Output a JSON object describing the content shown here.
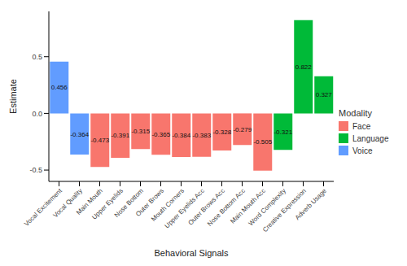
{
  "chart_data": {
    "type": "bar",
    "x_label": "Behavioral Signals",
    "y_label": "Estimate",
    "legend_title": "Modality",
    "legend": "right",
    "stacked": true,
    "data_labels": true,
    "grid": false,
    "categories": [
      "Vocal Excitement",
      "Vocal Quality",
      "Main Mouth",
      "Upper Eyelids",
      "Nose Bottom",
      "Outer Brows",
      "Mouth Corners",
      "Upper Eyelids Acc",
      "Outer Brows Acc",
      "Nose Bottom Acc",
      "Main Mouth Acc",
      "Word Complexity",
      "Creative Expression",
      "Adverb Usage"
    ],
    "series": [
      {
        "name": "Face",
        "color": "#F8766D",
        "values": [
          null,
          null,
          -0.473,
          -0.391,
          -0.315,
          -0.365,
          -0.384,
          -0.383,
          -0.328,
          -0.279,
          -0.505,
          null,
          null,
          null
        ]
      },
      {
        "name": "Language",
        "color": "#00BA38",
        "values": [
          null,
          null,
          null,
          null,
          null,
          null,
          null,
          null,
          null,
          null,
          null,
          -0.321,
          0.822,
          0.327
        ]
      },
      {
        "name": "Voice",
        "color": "#619CFF",
        "values": [
          0.456,
          -0.364,
          null,
          null,
          null,
          null,
          null,
          null,
          null,
          null,
          null,
          null,
          null,
          null
        ]
      }
    ],
    "ylim": [
      -0.6,
      0.9
    ],
    "yticks": [
      -0.5,
      {
        "value": 0,
        "label": "0.0"
      },
      0.5
    ]
  }
}
